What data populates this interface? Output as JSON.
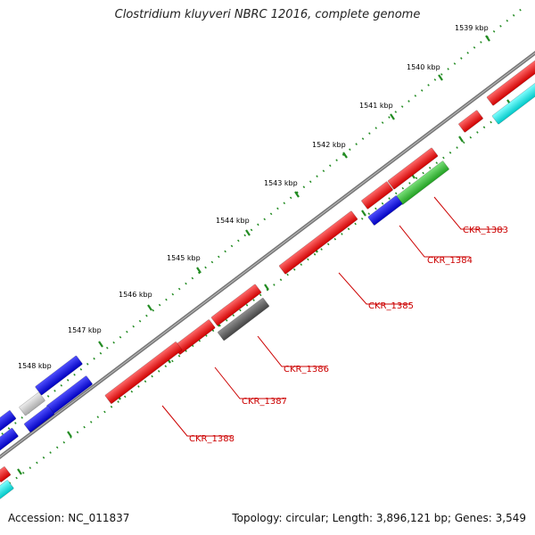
{
  "title": "Clostridium kluyveri NBRC 12016, complete genome",
  "footer": {
    "accession": "Accession: NC_011837",
    "summary": "Topology: circular; Length: 3,896,121 bp; Genes: 3,549"
  },
  "scale_labels": [
    "1539 kbp",
    "1540 kbp",
    "1541 kbp",
    "1542 kbp",
    "1543 kbp",
    "1544 kbp",
    "1545 kbp",
    "1546 kbp",
    "1547 kbp",
    "1548 kbp"
  ],
  "gene_labels": [
    "CKR_1383",
    "CKR_1384",
    "CKR_1385",
    "CKR_1386",
    "CKR_1387",
    "CKR_1388"
  ],
  "colors": {
    "red": "#ff0000",
    "blue": "#0000ee",
    "green": "#33cc33",
    "gray": "#666666",
    "lightgray": "#cccccc",
    "cyan": "#00eeee",
    "backbone": "#888888",
    "ticks": "#228b22",
    "label": "#cc0000"
  }
}
